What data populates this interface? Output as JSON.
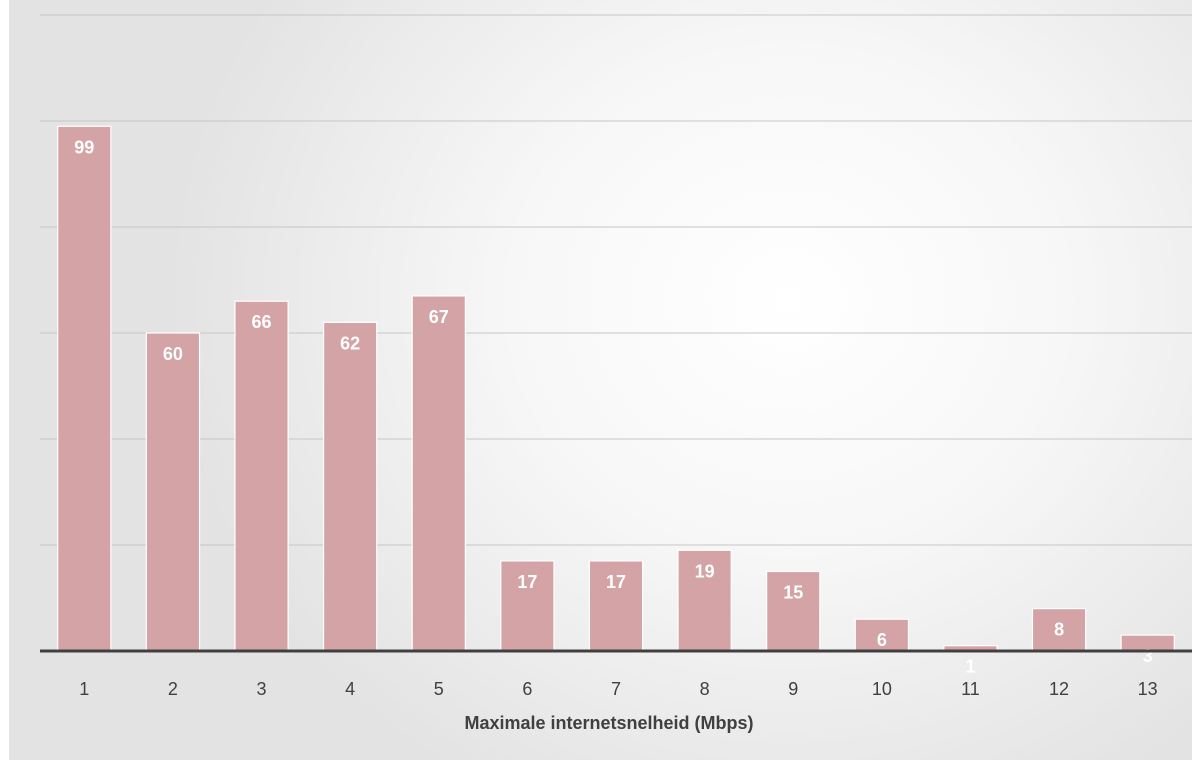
{
  "chart_data": {
    "type": "bar",
    "categories": [
      "1",
      "2",
      "3",
      "4",
      "5",
      "6",
      "7",
      "8",
      "9",
      "10",
      "11",
      "12",
      "13"
    ],
    "values": [
      99,
      60,
      66,
      62,
      67,
      17,
      17,
      19,
      15,
      6,
      1,
      8,
      3
    ],
    "title": "",
    "xlabel": "Maximale internetsnelheid (Mbps)",
    "ylabel": "",
    "ylim": [
      0,
      120
    ],
    "grid": true,
    "legend": "none",
    "colors": {
      "bar": "#d4a3a5",
      "axis": "#404040",
      "grid": "#c6c6c6",
      "label": "#ffffff"
    }
  }
}
